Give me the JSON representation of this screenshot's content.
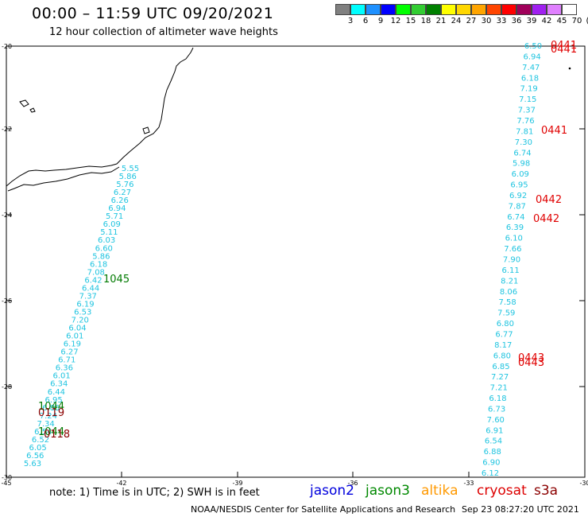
{
  "header": {
    "title": "00:00 – 11:59 UTC 09/20/2021",
    "subtitle": "12 hour collection of altimeter wave heights"
  },
  "colorbar": {
    "colors": [
      "#808080",
      "#00ffff",
      "#1e90ff",
      "#0000ff",
      "#00ff00",
      "#32cd32",
      "#008000",
      "#ffff00",
      "#ffd700",
      "#ffa500",
      "#ff4500",
      "#ff0000",
      "#a0005a",
      "#a020f0",
      "#e080ff",
      "#ffffff"
    ],
    "labels": [
      "3",
      "6",
      "9",
      "12",
      "15",
      "18",
      "21",
      "24",
      "27",
      "30",
      "33",
      "36",
      "39",
      "42",
      "45",
      "70",
      "(ft)"
    ]
  },
  "axes": {
    "lat_labels": [
      "-20",
      "-22",
      "-24",
      "-26",
      "-28",
      "-30"
    ],
    "lon_labels": [
      "-45",
      "-42",
      "-39",
      "-36",
      "-33",
      "-30"
    ]
  },
  "tracks": {
    "west_color": "#1fc4e0",
    "west_values": [
      "5.55",
      "5.86",
      "5.76",
      "6.27",
      "6.26",
      "6.94",
      "5.71",
      "6.09",
      "5.11",
      "6.03",
      "6.60",
      "5.86",
      "6.18",
      "7.08",
      "6.42",
      "6.44",
      "7.37",
      "6.19",
      "6.53",
      "7.20",
      "6.04",
      "6.01",
      "6.19",
      "6.27",
      "6.71",
      "6.36",
      "6.01",
      "6.34",
      "6.44",
      "6.95",
      "6.85",
      "7.24",
      "7.34",
      "6.54",
      "6.52",
      "6.05",
      "6.56",
      "5.63"
    ],
    "east_values": [
      "6.50",
      "6.94",
      "7.47",
      "6.18",
      "7.19",
      "7.15",
      "7.37",
      "7.76",
      "7.81",
      "7.30",
      "6.74",
      "5.98",
      "6.09",
      "6.95",
      "6.92",
      "7.87",
      "6.74",
      "6.39",
      "6.10",
      "7.66",
      "7.90",
      "6.11",
      "8.21",
      "8.06",
      "7.58",
      "7.59",
      "6.80",
      "6.77",
      "8.17",
      "6.80",
      "6.85",
      "7.27",
      "7.21",
      "6.18",
      "6.73",
      "7.60",
      "6.91",
      "6.54",
      "6.88",
      "6.90",
      "6.12"
    ],
    "pass_labels": [
      {
        "text": "0441",
        "color": "#e00000"
      },
      {
        "text": "0441",
        "color": "#e00000"
      },
      {
        "text": "0441",
        "color": "#e00000"
      },
      {
        "text": "0442",
        "color": "#e00000"
      },
      {
        "text": "0442",
        "color": "#e00000"
      },
      {
        "text": "0443",
        "color": "#e00000"
      },
      {
        "text": "0443",
        "color": "#e00000"
      },
      {
        "text": "1045",
        "color": "#007a00"
      },
      {
        "text": "1044",
        "color": "#007a00"
      },
      {
        "text": "0119",
        "color": "#8b0000"
      },
      {
        "text": "1044",
        "color": "#007a00"
      },
      {
        "text": "0118",
        "color": "#8b0000"
      }
    ]
  },
  "footer": {
    "note": "note:  1) Time is in UTC;  2) SWH is in feet",
    "credit": "NOAA/NESDIS Center for Satellite Applications and Research",
    "timestamp": "Sep 23 08:27:20 UTC 2021"
  },
  "legend": [
    {
      "label": "jason2",
      "color": "#0000dd"
    },
    {
      "label": "jason3",
      "color": "#008800"
    },
    {
      "label": "altika",
      "color": "#ff9900"
    },
    {
      "label": "cryosat",
      "color": "#dd0000"
    },
    {
      "label": "s3a",
      "color": "#8b0000"
    }
  ]
}
